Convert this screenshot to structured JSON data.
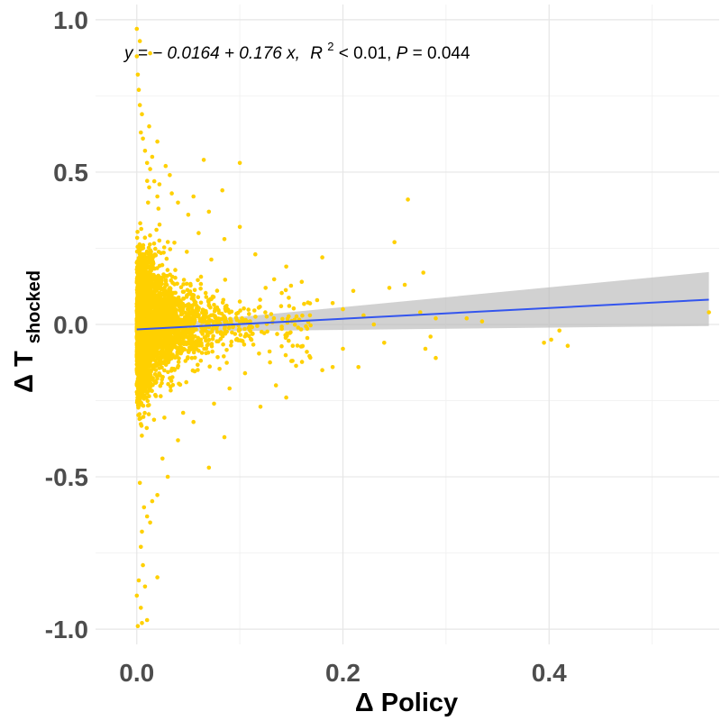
{
  "chart_data": {
    "type": "scatter",
    "title": "",
    "xlabel": "Δ Policy",
    "ylabel_main": "Δ T",
    "ylabel_sub": "shocked",
    "annotation": {
      "y_eq": "y = − 0.0164 + 0.176 x,",
      "r_part": "R",
      "r_exp": "2",
      "r_rest": " < 0.01, ",
      "p_part": "P",
      "p_rest": " = 0.044"
    },
    "xlim": [
      -0.04,
      0.565
    ],
    "ylim": [
      -1.05,
      1.05
    ],
    "x_ticks": [
      0.0,
      0.2,
      0.4
    ],
    "x_tick_labels": [
      "0.0",
      "0.2",
      "0.4"
    ],
    "y_ticks": [
      -1.0,
      -0.5,
      0.0,
      0.5,
      1.0
    ],
    "y_tick_labels": [
      "-1.0",
      "-0.5",
      "0.0",
      "0.5",
      "1.0"
    ],
    "grid": true,
    "colors": {
      "points": "#ffd000",
      "fit_line": "#3355ee",
      "ribbon": "#bebebe",
      "grid_major": "#e6e6e6",
      "grid_minor": "#f2f2f2"
    },
    "fit": {
      "intercept": -0.0164,
      "slope": 0.176,
      "x_range": [
        0.0,
        0.555
      ],
      "ci_lower": [
        [
          0.0,
          -0.025
        ],
        [
          0.555,
          -0.005
        ]
      ],
      "ci_upper": [
        [
          0.0,
          -0.008
        ],
        [
          0.555,
          0.172
        ]
      ]
    },
    "series": [
      {
        "points": [
          [
            0.0,
            0.97
          ],
          [
            0.0,
            0.88
          ],
          [
            0.001,
            0.82
          ],
          [
            0.002,
            0.77
          ],
          [
            0.003,
            0.72
          ],
          [
            0.005,
            0.69
          ],
          [
            0.004,
            0.63
          ],
          [
            0.006,
            0.61
          ],
          [
            0.012,
            0.65
          ],
          [
            0.008,
            0.57
          ],
          [
            0.01,
            0.53
          ],
          [
            0.015,
            0.55
          ],
          [
            0.02,
            0.6
          ],
          [
            0.013,
            0.89
          ],
          [
            0.003,
            0.93
          ],
          [
            0.013,
            0.51
          ],
          [
            0.017,
            0.47
          ],
          [
            0.028,
            0.52
          ],
          [
            0.034,
            0.43
          ],
          [
            0.04,
            0.4
          ],
          [
            0.05,
            0.36
          ],
          [
            0.055,
            0.42
          ],
          [
            0.065,
            0.54
          ],
          [
            0.1,
            0.53
          ],
          [
            0.07,
            0.37
          ],
          [
            0.083,
            0.44
          ],
          [
            0.032,
            0.49
          ],
          [
            0.022,
            0.46
          ],
          [
            0.021,
            0.38
          ],
          [
            0.012,
            0.45
          ],
          [
            0.02,
            0.42
          ],
          [
            0.011,
            0.4
          ],
          [
            0.06,
            0.3
          ],
          [
            0.085,
            0.28
          ],
          [
            0.1,
            0.32
          ],
          [
            0.115,
            0.23
          ],
          [
            0.125,
            0.12
          ],
          [
            0.14,
            0.06
          ],
          [
            0.145,
            0.19
          ],
          [
            0.16,
            0.14
          ],
          [
            0.175,
            0.08
          ],
          [
            0.18,
            0.22
          ],
          [
            0.19,
            0.07
          ],
          [
            0.2,
            0.05
          ],
          [
            0.21,
            0.11
          ],
          [
            0.22,
            0.03
          ],
          [
            0.23,
            0.0
          ],
          [
            0.245,
            0.12
          ],
          [
            0.25,
            0.27
          ],
          [
            0.26,
            0.13
          ],
          [
            0.263,
            0.41
          ],
          [
            0.275,
            0.04
          ],
          [
            0.278,
            0.17
          ],
          [
            0.28,
            -0.08
          ],
          [
            0.285,
            -0.04
          ],
          [
            0.29,
            -0.11
          ],
          [
            0.29,
            0.02
          ],
          [
            0.32,
            0.02
          ],
          [
            0.335,
            0.01
          ],
          [
            0.395,
            -0.06
          ],
          [
            0.402,
            -0.05
          ],
          [
            0.41,
            -0.02
          ],
          [
            0.418,
            -0.07
          ],
          [
            0.555,
            0.04
          ],
          [
            0.055,
            -0.32
          ],
          [
            0.075,
            -0.26
          ],
          [
            0.085,
            -0.37
          ],
          [
            0.07,
            -0.47
          ],
          [
            0.09,
            -0.21
          ],
          [
            0.105,
            -0.16
          ],
          [
            0.12,
            -0.27
          ],
          [
            0.135,
            -0.2
          ],
          [
            0.145,
            -0.24
          ],
          [
            0.15,
            -0.12
          ],
          [
            0.165,
            -0.09
          ],
          [
            0.18,
            -0.15
          ],
          [
            0.19,
            -0.14
          ],
          [
            0.2,
            -0.08
          ],
          [
            0.215,
            -0.14
          ],
          [
            0.24,
            -0.06
          ],
          [
            0.03,
            -0.5
          ],
          [
            0.04,
            -0.38
          ],
          [
            0.045,
            -0.29
          ],
          [
            0.025,
            -0.44
          ],
          [
            0.02,
            -0.56
          ],
          [
            0.015,
            -0.58
          ],
          [
            0.01,
            -0.63
          ],
          [
            0.013,
            -0.65
          ],
          [
            0.005,
            -0.68
          ],
          [
            0.004,
            -0.73
          ],
          [
            0.006,
            -0.79
          ],
          [
            0.002,
            -0.84
          ],
          [
            0.008,
            -0.86
          ],
          [
            0.02,
            -0.83
          ],
          [
            0.0,
            -0.89
          ],
          [
            0.004,
            -0.93
          ],
          [
            0.01,
            -0.97
          ],
          [
            0.005,
            -0.98
          ],
          [
            0.001,
            -0.99
          ],
          [
            0.003,
            -0.52
          ],
          [
            0.007,
            -0.6
          ]
        ]
      }
    ]
  }
}
